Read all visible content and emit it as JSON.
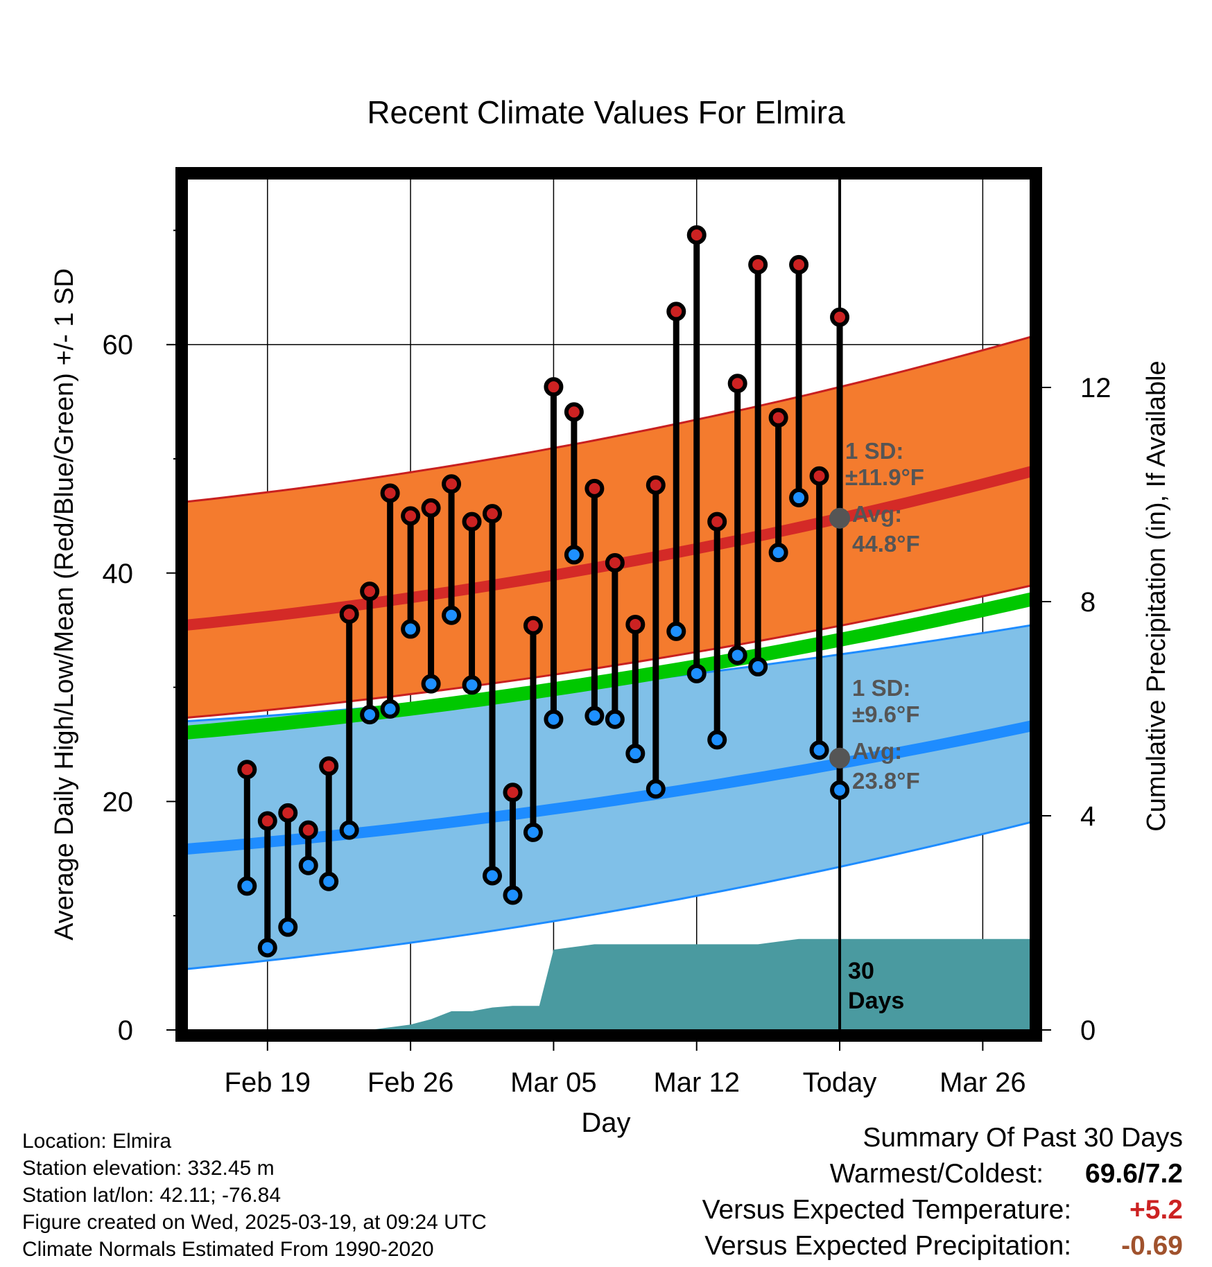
{
  "chart_data": {
    "type": "line",
    "title": "Recent Climate Values For Elmira",
    "xlabel": "Day",
    "ylabel": "Average Daily High/Low/Mean (Red/Blue/Green) +/- 1 SD",
    "y2label": "Cumulative Precipitation (in), If Available",
    "x_range_days": [
      -32.2,
      9.6
    ],
    "ylim": [
      0,
      75
    ],
    "y2lim": [
      0,
      16
    ],
    "x_ticks": [
      {
        "day": -28,
        "label": "Feb 19"
      },
      {
        "day": -21,
        "label": "Feb 26"
      },
      {
        "day": -14,
        "label": "Mar 05"
      },
      {
        "day": -7,
        "label": "Mar 12"
      },
      {
        "day": 0,
        "label": "Today"
      },
      {
        "day": 7,
        "label": "Mar 26"
      }
    ],
    "y_ticks": [
      0,
      20,
      40,
      60
    ],
    "y2_ticks": [
      0,
      4,
      8,
      12
    ],
    "grid": true,
    "normals": {
      "high_avg": {
        "start": 35.4,
        "end": 49.0,
        "color": "#d42a27"
      },
      "high_sd_upper": {
        "start": 46.2,
        "end": 60.8
      },
      "high_sd_lower": {
        "start": 27.3,
        "end": 39.0
      },
      "mean_avg": {
        "start": 26.0,
        "end": 37.8,
        "color": "#00c800"
      },
      "low_avg": {
        "start": 15.8,
        "end": 26.7,
        "color": "#1e8cff"
      },
      "low_sd_upper": {
        "start": 27.0,
        "end": 35.5
      },
      "low_sd_lower": {
        "start": 5.3,
        "end": 18.3
      },
      "high_band_color": "#f47b2e",
      "low_band_color": "#80c0e8"
    },
    "today_marker": {
      "high_label": [
        "1 SD:",
        "±11.9°F",
        "Avg:",
        "44.8°F"
      ],
      "high_avg_value": 44.8,
      "low_label": [
        "1 SD:",
        "±9.6°F",
        "Avg:",
        "23.8°F"
      ],
      "low_avg_value": 23.8
    },
    "series": [
      {
        "name": "High",
        "color": "#cc2222",
        "values": [
          22.8,
          18.3,
          19.0,
          17.5,
          23.1,
          36.4,
          38.4,
          47.0,
          45.0,
          45.7,
          47.8,
          44.5,
          45.2,
          20.8,
          35.4,
          56.3,
          54.1,
          47.4,
          40.9,
          35.5,
          47.7,
          62.9,
          69.6,
          44.5,
          56.6,
          67.0,
          53.6,
          67.0,
          48.5,
          62.4
        ]
      },
      {
        "name": "Low",
        "color": "#1e90ff",
        "values": [
          12.6,
          7.2,
          9.0,
          14.4,
          13.0,
          17.5,
          27.6,
          28.1,
          35.1,
          30.3,
          36.3,
          30.2,
          13.5,
          11.8,
          17.3,
          27.2,
          41.6,
          27.5,
          27.2,
          24.2,
          21.1,
          34.9,
          31.2,
          25.4,
          32.8,
          31.8,
          41.8,
          46.6,
          24.5,
          21.0
        ]
      }
    ],
    "days": [
      -29,
      -28,
      -27,
      -26,
      -25,
      -24,
      -23,
      -22,
      -21,
      -20,
      -19,
      -18,
      -17,
      -16,
      -15,
      -14,
      -13,
      -12,
      -11,
      -10,
      -9,
      -8,
      -7,
      -6,
      -5,
      -4,
      -3,
      -2,
      -1,
      0
    ],
    "precipitation": {
      "color": "#4a9aa0",
      "days": [
        -32.2,
        -23,
        -22,
        -21,
        -20,
        -19,
        -18,
        -17,
        -16,
        -15,
        -14.7,
        -14,
        -13,
        -12,
        -8,
        -4,
        -3,
        -2,
        9.6
      ],
      "values": [
        0,
        0,
        0.05,
        0.1,
        0.2,
        0.35,
        0.35,
        0.42,
        0.45,
        0.45,
        0.45,
        1.5,
        1.55,
        1.6,
        1.6,
        1.6,
        1.65,
        1.7,
        1.7
      ],
      "label": [
        "30",
        "Days"
      ]
    }
  },
  "info": {
    "location": "Location: Elmira",
    "elevation": "Station elevation: 332.45 m",
    "latlon": "Station lat/lon: 42.11; -76.84",
    "created": "Figure created on Wed, 2025-03-19, at 09:24 UTC",
    "normals": "Climate Normals Estimated From 1990-2020"
  },
  "summary": {
    "title": "Summary Of Past 30 Days",
    "warm_cold_label": "Warmest/Coldest:",
    "warm_cold_value": "69.6/7.2",
    "temp_label": "Versus Expected Temperature:",
    "temp_value": "+5.2",
    "temp_color": "#cc2222",
    "precip_label": "Versus Expected Precipitation:",
    "precip_value": "-0.69",
    "precip_color": "#a0522d"
  }
}
